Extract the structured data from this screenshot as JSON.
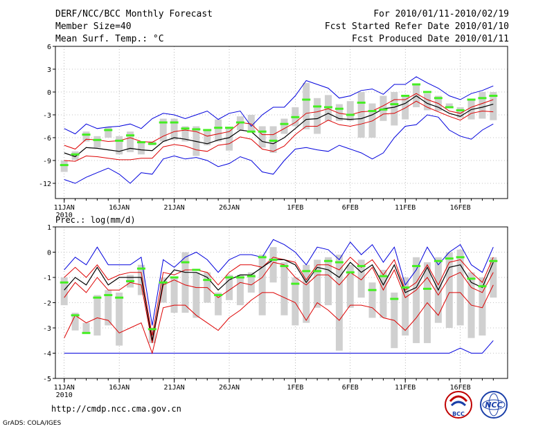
{
  "header": {
    "title": "DERF/NCC/BCC Monthly Forecast",
    "member_size": "Member Size=40",
    "variable": "Mean Surf. Temp.: °C",
    "period": "For 2010/01/11-2010/02/19",
    "refer_date": "Fcst Started Refer Date 2010/01/10",
    "produced_date": "Fcst Produced Date 2010/01/11"
  },
  "footer": {
    "url": "http://cmdp.ncc.cma.gov.cn",
    "credit": "GrADS: COLA/IGES",
    "logo_bcc": "BCC",
    "logo_ncc": "NCC"
  },
  "colors": {
    "box": "#d0d0d0",
    "median": "#44ee22",
    "mean": "#000000",
    "spread": "#dd0000",
    "extreme": "#0000dd",
    "grid": "#888888"
  },
  "chart_data": [
    {
      "type": "box-ensemble",
      "title": "Mean Surf. Temp.: °C",
      "ylim": [
        -14,
        6
      ],
      "yticks": [
        6,
        3,
        0,
        -3,
        -6,
        -9,
        -12
      ],
      "xlabels": [
        "11JAN",
        "16JAN",
        "21JAN",
        "26JAN",
        "1FEB",
        "6FEB",
        "11FEB",
        "16FEB"
      ],
      "xlabel_year": "2010",
      "xtick_days": [
        1,
        6,
        11,
        16,
        22,
        27,
        32,
        37
      ],
      "days": [
        1,
        2,
        3,
        4,
        5,
        6,
        7,
        8,
        9,
        10,
        11,
        12,
        13,
        14,
        15,
        16,
        17,
        18,
        19,
        20,
        21,
        22,
        23,
        24,
        25,
        26,
        27,
        28,
        29,
        30,
        31,
        32,
        33,
        34,
        35,
        36,
        37,
        38,
        39,
        40
      ],
      "series": {
        "max": [
          -4.8,
          -5.5,
          -4.2,
          -4.8,
          -4.6,
          -4.5,
          -4.2,
          -4.8,
          -3.5,
          -2.8,
          -3.0,
          -3.5,
          -3.0,
          -2.5,
          -3.6,
          -2.8,
          -2.5,
          -4.5,
          -3.0,
          -2.0,
          -2.0,
          -0.5,
          1.5,
          1.0,
          0.5,
          -0.8,
          -0.5,
          0.2,
          0.4,
          -0.3,
          1.0,
          1.0,
          2.0,
          1.2,
          0.5,
          -0.5,
          -1.0,
          -0.2,
          0.2,
          0.8
        ],
        "plus_sd": [
          -7.0,
          -7.5,
          -6.2,
          -6.3,
          -6.5,
          -6.4,
          -6.0,
          -6.5,
          -6.6,
          -5.8,
          -5.2,
          -5.0,
          -5.2,
          -5.8,
          -5.5,
          -5.2,
          -4.0,
          -4.2,
          -5.6,
          -5.6,
          -4.8,
          -4.0,
          -2.8,
          -2.6,
          -2.2,
          -2.8,
          -3.0,
          -2.6,
          -2.5,
          -1.8,
          -1.0,
          -1.0,
          -0.2,
          -1.0,
          -1.5,
          -2.5,
          -2.8,
          -2.0,
          -1.5,
          -1.0
        ],
        "mean": [
          -8.0,
          -8.5,
          -7.3,
          -7.4,
          -7.6,
          -7.8,
          -7.4,
          -7.6,
          -7.7,
          -6.5,
          -6.0,
          -6.2,
          -6.5,
          -6.8,
          -6.3,
          -6.0,
          -5.0,
          -5.2,
          -6.5,
          -6.8,
          -6.0,
          -4.8,
          -3.6,
          -3.5,
          -2.8,
          -3.5,
          -3.6,
          -3.5,
          -3.0,
          -2.2,
          -2.0,
          -1.5,
          -0.5,
          -1.5,
          -2.0,
          -2.8,
          -3.2,
          -2.3,
          -2.0,
          -1.6
        ],
        "minus_sd": [
          -9.0,
          -9.1,
          -8.4,
          -8.5,
          -8.7,
          -8.9,
          -8.9,
          -8.7,
          -8.7,
          -7.2,
          -6.9,
          -7.1,
          -7.6,
          -7.8,
          -7.0,
          -6.8,
          -5.9,
          -6.2,
          -7.5,
          -7.8,
          -7.1,
          -5.6,
          -4.5,
          -4.5,
          -3.7,
          -4.3,
          -4.5,
          -4.2,
          -3.8,
          -2.9,
          -2.8,
          -2.1,
          -1.2,
          -2.0,
          -2.6,
          -3.2,
          -3.7,
          -2.8,
          -2.5,
          -2.6
        ],
        "min": [
          -11.5,
          -12.0,
          -11.2,
          -10.6,
          -10.0,
          -10.8,
          -12.0,
          -10.6,
          -10.8,
          -8.8,
          -8.4,
          -8.8,
          -8.6,
          -9.0,
          -9.8,
          -9.4,
          -8.5,
          -9.0,
          -10.5,
          -10.8,
          -9.0,
          -7.5,
          -7.3,
          -7.6,
          -7.8,
          -7.0,
          -7.5,
          -8.0,
          -8.8,
          -8.0,
          -6.0,
          -4.5,
          -4.3,
          -3.0,
          -3.3,
          -5.0,
          -5.8,
          -6.2,
          -5.0,
          -4.2
        ],
        "box_hi": [
          -9.0,
          -7.8,
          -5.2,
          -5.8,
          -4.6,
          -5.8,
          -5.2,
          -6.6,
          -6.5,
          -3.5,
          -3.5,
          -4.5,
          -4.5,
          -5.0,
          -3.6,
          -4.8,
          -3.2,
          -3.0,
          -4.5,
          -4.5,
          -3.5,
          -2.0,
          1.2,
          -0.8,
          -0.4,
          -1.6,
          -1.2,
          0.0,
          -1.5,
          -0.5,
          0.0,
          -0.5,
          1.0,
          -0.2,
          -0.5,
          -1.5,
          -2.0,
          -1.0,
          0.0,
          0.0
        ],
        "box_lo": [
          -10.5,
          -8.9,
          -6.5,
          -7.3,
          -6.0,
          -8.2,
          -7.9,
          -8.2,
          -7.0,
          -6.5,
          -6.3,
          -6.5,
          -8.4,
          -7.0,
          -6.5,
          -7.7,
          -5.0,
          -5.3,
          -7.3,
          -8.0,
          -5.5,
          -4.5,
          -4.9,
          -5.5,
          -3.8,
          -3.8,
          -3.8,
          -6.0,
          -6.0,
          -3.8,
          -4.4,
          -3.6,
          -2.0,
          -2.4,
          -2.5,
          -2.0,
          -3.4,
          -3.6,
          -3.5,
          -3.7
        ],
        "median": [
          -9.6,
          -8.2,
          -5.6,
          -6.3,
          -5.0,
          -6.4,
          -5.7,
          -6.6,
          -6.8,
          -4.0,
          -4.0,
          -4.8,
          -4.9,
          -5.0,
          -4.7,
          -4.7,
          -4.0,
          -5.2,
          -5.2,
          -6.4,
          -4.2,
          -3.3,
          -1.0,
          -1.9,
          -2.0,
          -2.2,
          -3.0,
          -1.4,
          -2.5,
          -2.3,
          -1.6,
          -0.5,
          1.0,
          0.0,
          -0.8,
          -2.0,
          -2.4,
          -1.0,
          -0.8,
          -0.5
        ]
      }
    },
    {
      "type": "box-ensemble",
      "title": "Prec.: log(mm/d)",
      "ylim": [
        -5,
        1
      ],
      "yticks": [
        1,
        0,
        -1,
        -2,
        -3,
        -4,
        -5
      ],
      "xlabels": [
        "11JAN",
        "16JAN",
        "21JAN",
        "26JAN",
        "1FEB",
        "6FEB",
        "11FEB",
        "16FEB"
      ],
      "xlabel_year": "2010",
      "xtick_days": [
        1,
        6,
        11,
        16,
        22,
        27,
        32,
        37
      ],
      "days": [
        1,
        2,
        3,
        4,
        5,
        6,
        7,
        8,
        9,
        10,
        11,
        12,
        13,
        14,
        15,
        16,
        17,
        18,
        19,
        20,
        21,
        22,
        23,
        24,
        25,
        26,
        27,
        28,
        29,
        30,
        31,
        32,
        33,
        34,
        35,
        36,
        37,
        38,
        39,
        40
      ],
      "series": {
        "max": [
          -0.7,
          -0.2,
          -0.5,
          0.2,
          -0.5,
          -0.5,
          -0.5,
          -0.2,
          -2.9,
          -0.3,
          -0.6,
          -0.2,
          0.0,
          -0.3,
          -0.8,
          -0.3,
          -0.1,
          -0.1,
          -0.2,
          0.5,
          0.3,
          0.0,
          -0.5,
          0.2,
          0.1,
          -0.3,
          0.4,
          -0.1,
          0.3,
          -0.4,
          0.2,
          -1.3,
          -0.7,
          0.2,
          -0.5,
          0.0,
          0.3,
          -0.5,
          -0.8,
          0.2
        ],
        "plus_sd": [
          -1.0,
          -0.6,
          -1.0,
          -0.5,
          -1.1,
          -0.9,
          -0.8,
          -0.8,
          -3.3,
          -0.8,
          -0.9,
          -0.7,
          -0.7,
          -0.8,
          -1.3,
          -0.8,
          -0.5,
          -0.5,
          -0.6,
          -0.2,
          -0.3,
          -0.4,
          -1.1,
          -0.5,
          -0.5,
          -0.7,
          -0.2,
          -0.6,
          -0.3,
          -0.9,
          -0.3,
          -1.5,
          -1.2,
          -0.5,
          -1.3,
          -0.4,
          -0.3,
          -0.8,
          -1.2,
          -0.2
        ],
        "mean": [
          -1.5,
          -1.0,
          -1.3,
          -0.6,
          -1.3,
          -1.0,
          -1.0,
          -1.0,
          -3.5,
          -1.2,
          -0.7,
          -0.8,
          -0.8,
          -1.0,
          -1.5,
          -1.1,
          -0.9,
          -0.9,
          -0.6,
          -0.3,
          -0.3,
          -0.5,
          -1.2,
          -0.6,
          -0.7,
          -1.0,
          -0.4,
          -0.8,
          -0.5,
          -1.3,
          -0.5,
          -1.6,
          -1.4,
          -0.6,
          -1.5,
          -0.6,
          -0.5,
          -1.2,
          -1.4,
          -0.4
        ],
        "minus_sd": [
          -1.8,
          -1.2,
          -1.6,
          -1.0,
          -1.5,
          -1.5,
          -1.2,
          -1.3,
          -3.6,
          -1.3,
          -1.1,
          -1.3,
          -1.4,
          -1.4,
          -1.8,
          -1.5,
          -1.2,
          -1.3,
          -1.0,
          -0.4,
          -0.5,
          -1.0,
          -1.3,
          -0.9,
          -0.9,
          -1.3,
          -0.8,
          -1.1,
          -0.6,
          -1.5,
          -0.7,
          -1.8,
          -1.5,
          -1.0,
          -1.7,
          -1.0,
          -0.8,
          -1.4,
          -1.6,
          -0.8
        ],
        "lower": [
          -3.4,
          -2.5,
          -2.8,
          -2.6,
          -2.7,
          -3.2,
          -3.0,
          -2.8,
          -4.0,
          -2.2,
          -2.1,
          -2.1,
          -2.5,
          -2.8,
          -3.1,
          -2.6,
          -2.3,
          -1.9,
          -1.6,
          -1.6,
          -1.8,
          -2.0,
          -2.7,
          -2.0,
          -2.3,
          -2.7,
          -2.1,
          -2.1,
          -2.2,
          -2.6,
          -2.7,
          -3.1,
          -2.6,
          -2.0,
          -2.5,
          -1.6,
          -1.6,
          -2.1,
          -2.2,
          -1.3
        ],
        "min": [
          -4.0,
          -4.0,
          -4.0,
          -4.0,
          -4.0,
          -4.0,
          -4.0,
          -4.0,
          -4.0,
          -4.0,
          -4.0,
          -4.0,
          -4.0,
          -4.0,
          -4.0,
          -4.0,
          -4.0,
          -4.0,
          -4.0,
          -4.0,
          -4.0,
          -4.0,
          -4.0,
          -4.0,
          -4.0,
          -4.0,
          -4.0,
          -4.0,
          -4.0,
          -4.0,
          -4.0,
          -4.0,
          -4.0,
          -4.0,
          -4.0,
          -4.0,
          -3.8,
          -4.0,
          -4.0,
          -3.5
        ],
        "box_hi": [
          -1.0,
          -2.4,
          -2.8,
          -1.7,
          -1.5,
          -1.6,
          -0.9,
          -0.5,
          -3.0,
          -1.0,
          -1.0,
          0.0,
          -0.8,
          -0.8,
          -1.6,
          -0.9,
          -0.9,
          -0.8,
          -0.1,
          0.2,
          -0.4,
          -1.0,
          -0.5,
          -0.3,
          -0.2,
          -0.1,
          -0.5,
          -0.3,
          -1.2,
          -0.7,
          -1.6,
          -1.0,
          -0.2,
          -0.4,
          -0.2,
          0.0,
          0.1,
          -0.8,
          -1.0,
          -0.2
        ],
        "box_lo": [
          -2.1,
          -3.1,
          -3.2,
          -3.3,
          -2.9,
          -3.7,
          -1.4,
          -1.7,
          -3.6,
          -2.0,
          -2.4,
          -2.4,
          -2.6,
          -2.0,
          -2.5,
          -1.9,
          -2.1,
          -1.6,
          -2.5,
          -1.2,
          -2.5,
          -2.9,
          -2.8,
          -2.2,
          -2.1,
          -3.9,
          -2.2,
          -1.8,
          -2.6,
          -2.6,
          -3.8,
          -3.3,
          -3.6,
          -3.6,
          -2.8,
          -3.0,
          -2.9,
          -3.4,
          -3.3,
          -1.8
        ],
        "median": [
          -1.2,
          -2.5,
          -3.2,
          -1.8,
          -1.7,
          -1.8,
          -1.15,
          -0.65,
          -3.05,
          -1.2,
          -1.0,
          -0.4,
          -0.7,
          -1.1,
          -1.7,
          -1.0,
          -1.0,
          -0.95,
          -0.2,
          -0.3,
          -0.55,
          -1.25,
          -0.75,
          -0.75,
          -0.35,
          -0.4,
          -0.8,
          -0.55,
          -1.5,
          -0.95,
          -1.85,
          -1.4,
          -0.55,
          -1.45,
          -0.35,
          -0.25,
          -0.2,
          -1.05,
          -1.35,
          -0.35
        ]
      }
    }
  ]
}
